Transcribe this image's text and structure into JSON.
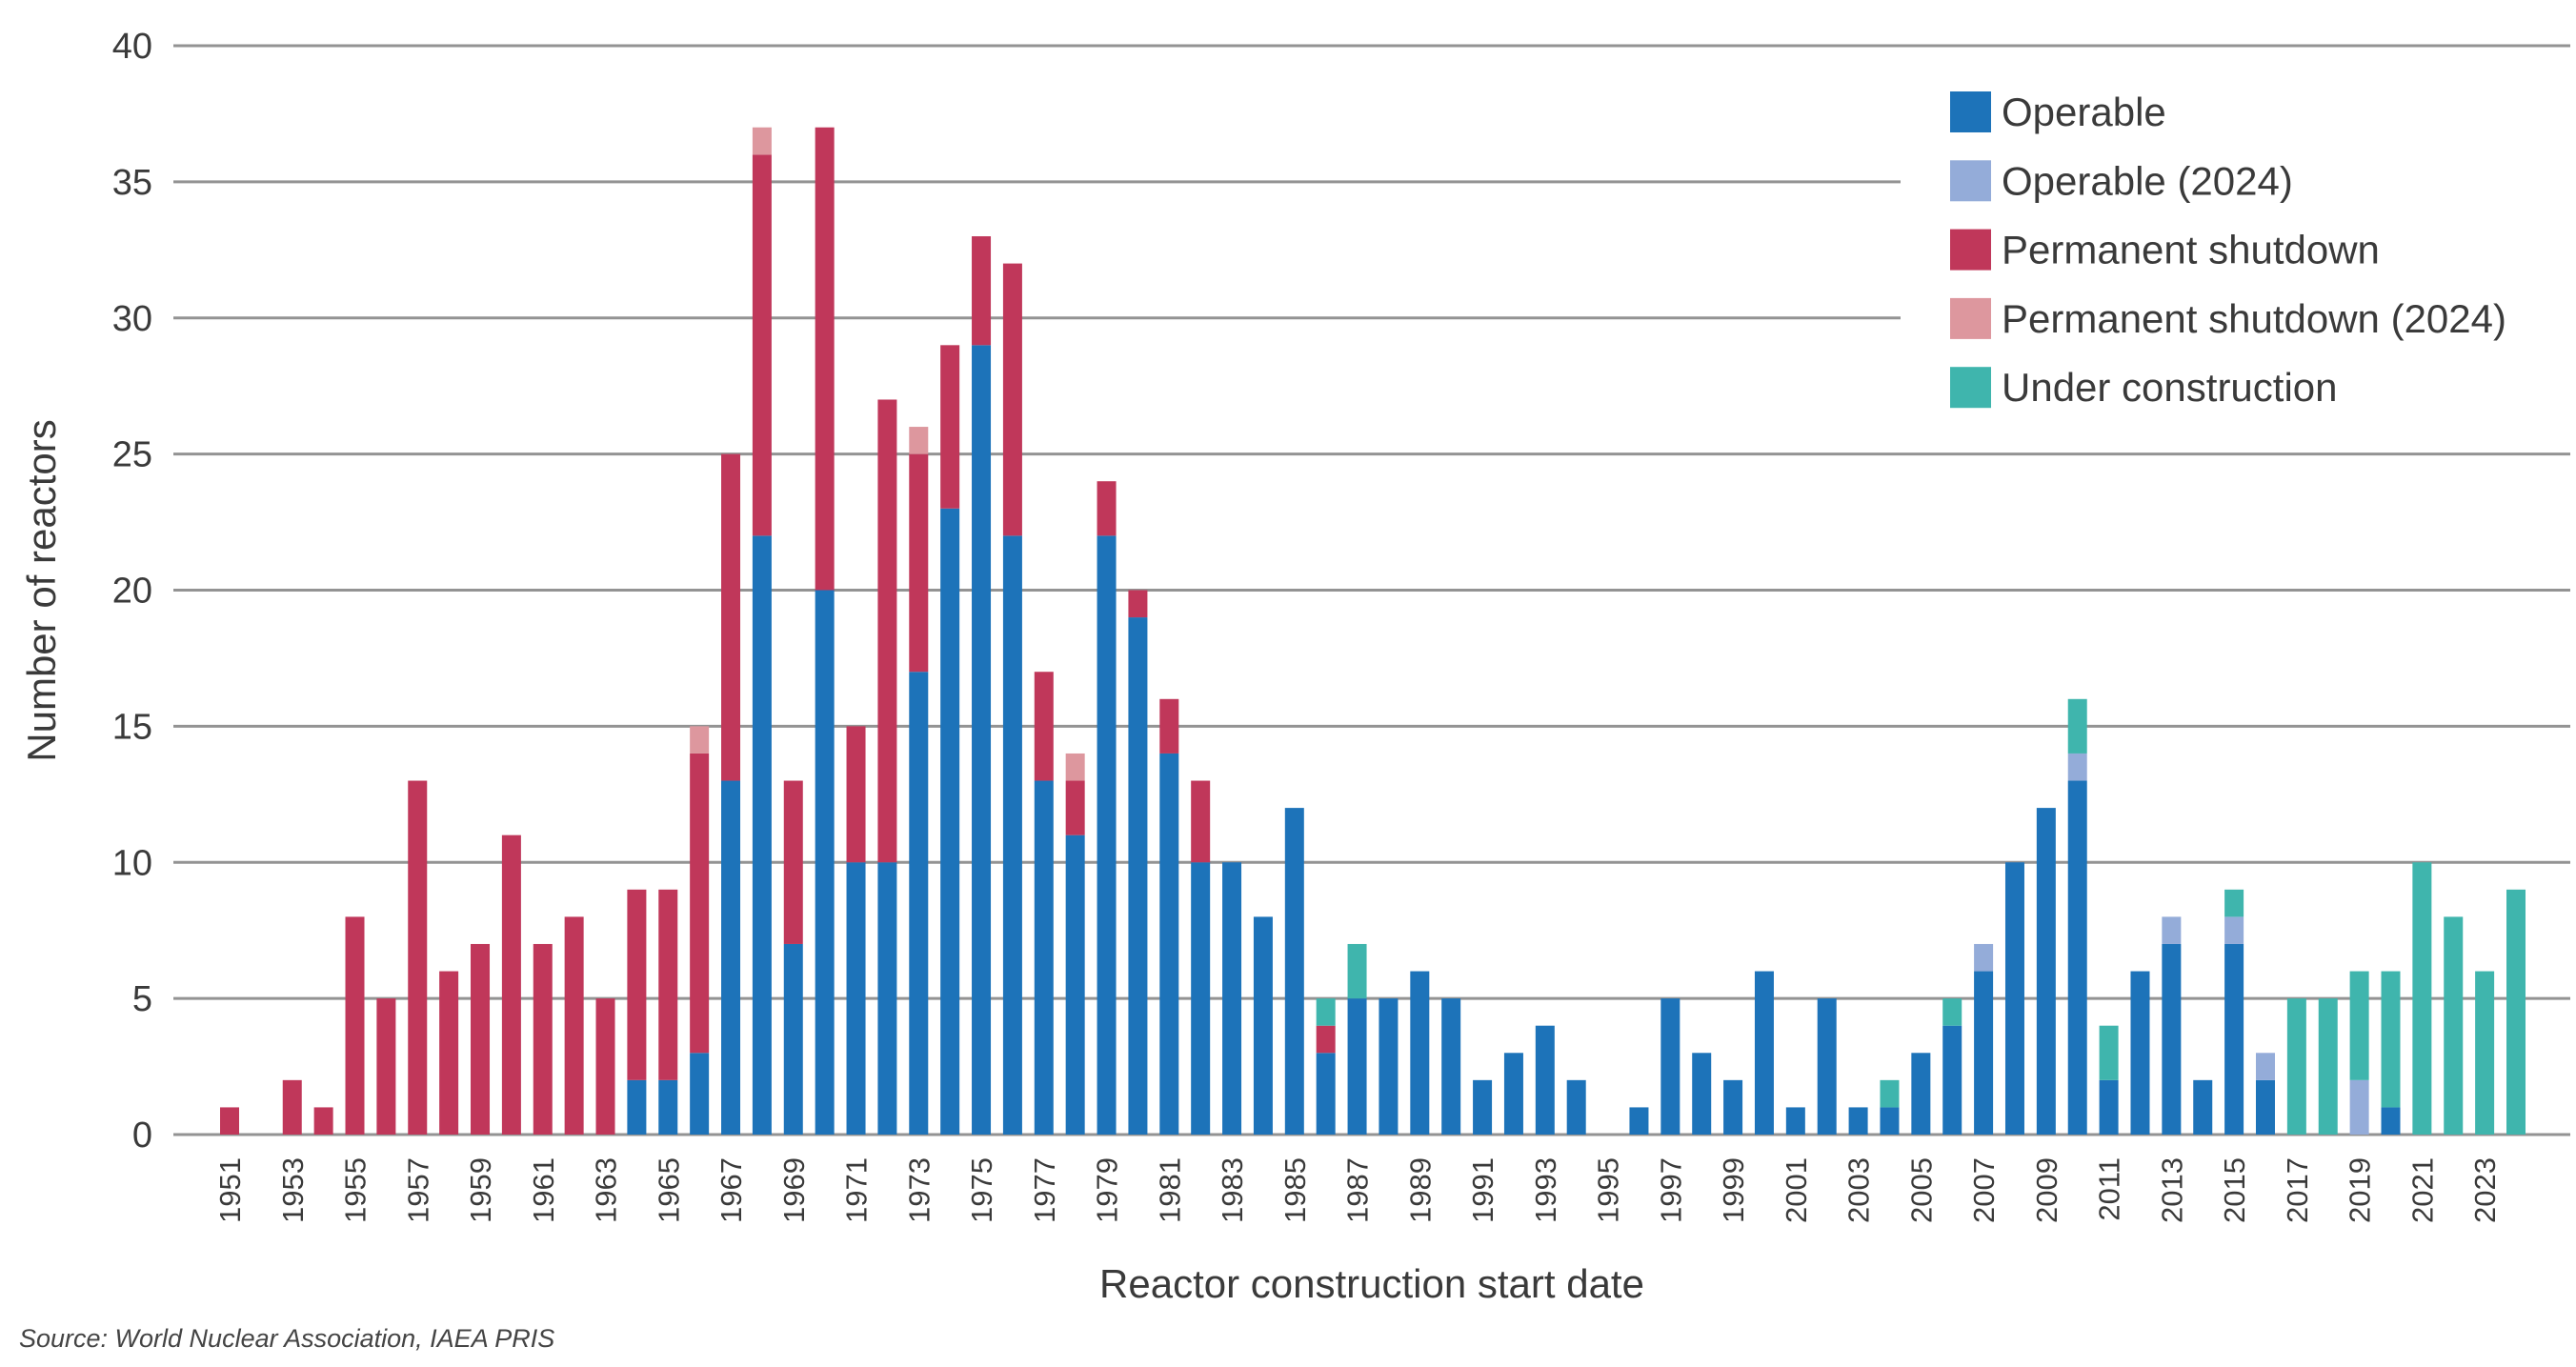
{
  "chart_data": {
    "type": "bar",
    "stacked": true,
    "xlabel": "Reactor construction start date",
    "ylabel": "Number of reactors",
    "ylim": [
      0,
      40
    ],
    "yticks": [
      0,
      5,
      10,
      15,
      20,
      25,
      30,
      35,
      40
    ],
    "grid": true,
    "legend_position": "top-right",
    "categories": [
      1951,
      1952,
      1953,
      1954,
      1955,
      1956,
      1957,
      1958,
      1959,
      1960,
      1961,
      1962,
      1963,
      1964,
      1965,
      1966,
      1967,
      1968,
      1969,
      1970,
      1971,
      1972,
      1973,
      1974,
      1975,
      1976,
      1977,
      1978,
      1979,
      1980,
      1981,
      1982,
      1983,
      1984,
      1985,
      1986,
      1987,
      1988,
      1989,
      1990,
      1991,
      1992,
      1993,
      1994,
      1995,
      1996,
      1997,
      1998,
      1999,
      2000,
      2001,
      2002,
      2003,
      2004,
      2005,
      2006,
      2007,
      2008,
      2009,
      2010,
      2011,
      2012,
      2013,
      2014,
      2015,
      2016,
      2017,
      2018,
      2019,
      2020,
      2021,
      2022,
      2023,
      2024
    ],
    "tick_labels": [
      "1951",
      "1953",
      "1955",
      "1957",
      "1959",
      "1961",
      "1963",
      "1965",
      "1967",
      "1969",
      "1971",
      "1973",
      "1975",
      "1977",
      "1979",
      "1981",
      "1983",
      "1985",
      "1987",
      "1989",
      "1991",
      "1993",
      "1995",
      "1997",
      "1999",
      "2001",
      "2003",
      "2005",
      "2007",
      "2009",
      "2011",
      "2013",
      "2015",
      "2017",
      "2019",
      "2021",
      "2023"
    ],
    "series": [
      {
        "name": "Operable",
        "color": "#1d73b9",
        "values": [
          0,
          0,
          0,
          0,
          0,
          0,
          0,
          0,
          0,
          0,
          0,
          0,
          0,
          2,
          2,
          3,
          13,
          22,
          7,
          20,
          10,
          10,
          17,
          23,
          29,
          22,
          13,
          11,
          22,
          19,
          14,
          10,
          10,
          8,
          12,
          3,
          5,
          5,
          6,
          5,
          2,
          3,
          4,
          2,
          0,
          1,
          5,
          3,
          2,
          6,
          1,
          5,
          1,
          1,
          3,
          4,
          6,
          10,
          12,
          13,
          2,
          6,
          7,
          2,
          7,
          2,
          0,
          0,
          0,
          1,
          0,
          0,
          0,
          0
        ]
      },
      {
        "name": "Operable (2024)",
        "color": "#94acd9",
        "values": [
          0,
          0,
          0,
          0,
          0,
          0,
          0,
          0,
          0,
          0,
          0,
          0,
          0,
          0,
          0,
          0,
          0,
          0,
          0,
          0,
          0,
          0,
          0,
          0,
          0,
          0,
          0,
          0,
          0,
          0,
          0,
          0,
          0,
          0,
          0,
          0,
          0,
          0,
          0,
          0,
          0,
          0,
          0,
          0,
          0,
          0,
          0,
          0,
          0,
          0,
          0,
          0,
          0,
          0,
          0,
          0,
          1,
          0,
          0,
          1,
          0,
          0,
          1,
          0,
          1,
          1,
          0,
          0,
          2,
          0,
          0,
          0,
          0,
          0
        ]
      },
      {
        "name": "Permanent shutdown",
        "color": "#c0375a",
        "values": [
          1,
          0,
          2,
          1,
          8,
          5,
          13,
          6,
          7,
          11,
          7,
          8,
          5,
          7,
          7,
          11,
          12,
          14,
          6,
          17,
          5,
          17,
          8,
          6,
          4,
          10,
          4,
          2,
          2,
          1,
          2,
          3,
          0,
          0,
          0,
          1,
          0,
          0,
          0,
          0,
          0,
          0,
          0,
          0,
          0,
          0,
          0,
          0,
          0,
          0,
          0,
          0,
          0,
          0,
          0,
          0,
          0,
          0,
          0,
          0,
          0,
          0,
          0,
          0,
          0,
          0,
          0,
          0,
          0,
          0,
          0,
          0,
          0,
          0
        ]
      },
      {
        "name": "Permanent shutdown (2024)",
        "color": "#dd979e",
        "values": [
          0,
          0,
          0,
          0,
          0,
          0,
          0,
          0,
          0,
          0,
          0,
          0,
          0,
          0,
          0,
          1,
          0,
          1,
          0,
          0,
          0,
          0,
          1,
          0,
          0,
          0,
          0,
          1,
          0,
          0,
          0,
          0,
          0,
          0,
          0,
          0,
          0,
          0,
          0,
          0,
          0,
          0,
          0,
          0,
          0,
          0,
          0,
          0,
          0,
          0,
          0,
          0,
          0,
          0,
          0,
          0,
          0,
          0,
          0,
          0,
          0,
          0,
          0,
          0,
          0,
          0,
          0,
          0,
          0,
          0,
          0,
          0,
          0,
          0
        ]
      },
      {
        "name": "Under construction",
        "color": "#3fb5ad",
        "values": [
          0,
          0,
          0,
          0,
          0,
          0,
          0,
          0,
          0,
          0,
          0,
          0,
          0,
          0,
          0,
          0,
          0,
          0,
          0,
          0,
          0,
          0,
          0,
          0,
          0,
          0,
          0,
          0,
          0,
          0,
          0,
          0,
          0,
          0,
          0,
          1,
          2,
          0,
          0,
          0,
          0,
          0,
          0,
          0,
          0,
          0,
          0,
          0,
          0,
          0,
          0,
          0,
          0,
          1,
          0,
          1,
          0,
          0,
          0,
          2,
          2,
          0,
          0,
          0,
          1,
          0,
          5,
          5,
          4,
          5,
          10,
          8,
          6,
          9
        ]
      }
    ],
    "source": "Source: World Nuclear Association, IAEA PRIS"
  }
}
